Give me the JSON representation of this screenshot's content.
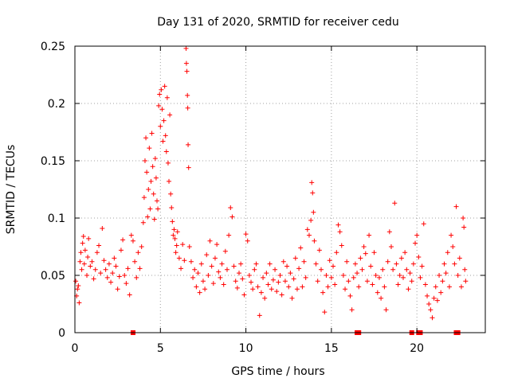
{
  "chart_data": {
    "type": "scatter",
    "title": "Day 131 of 2020, SRMTID for receiver cedu",
    "xlabel": "GPS time / hours",
    "ylabel": "SRMTID / TECUs",
    "xlim": [
      0,
      24
    ],
    "ylim": [
      0,
      0.25
    ],
    "x_ticks": [
      0,
      5,
      10,
      15,
      20
    ],
    "x_tick_labels": [
      "0",
      "5",
      "10",
      "15",
      "20"
    ],
    "y_ticks": [
      0,
      0.05,
      0.1,
      0.15,
      0.2,
      0.25
    ],
    "y_tick_labels": [
      "0",
      "0.05",
      "0.1",
      "0.15",
      "0.2",
      "0.25"
    ],
    "grid": true,
    "marker": "plus",
    "color": "#ff0000",
    "zero_markers": {
      "marker": "square",
      "x": [
        3.4,
        16.5,
        16.6,
        19.7,
        20.1,
        20.2,
        22.3,
        22.4
      ]
    },
    "series": [
      {
        "name": "SRMTID",
        "points": [
          [
            0.05,
            0.045
          ],
          [
            0.1,
            0.032
          ],
          [
            0.15,
            0.038
          ],
          [
            0.2,
            0.041
          ],
          [
            0.25,
            0.026
          ],
          [
            0.3,
            0.062
          ],
          [
            0.35,
            0.07
          ],
          [
            0.4,
            0.055
          ],
          [
            0.45,
            0.078
          ],
          [
            0.5,
            0.084
          ],
          [
            0.55,
            0.06
          ],
          [
            0.6,
            0.072
          ],
          [
            0.7,
            0.05
          ],
          [
            0.75,
            0.066
          ],
          [
            0.8,
            0.082
          ],
          [
            0.9,
            0.058
          ],
          [
            1.0,
            0.062
          ],
          [
            1.1,
            0.047
          ],
          [
            1.2,
            0.055
          ],
          [
            1.3,
            0.07
          ],
          [
            1.4,
            0.076
          ],
          [
            1.5,
            0.052
          ],
          [
            1.6,
            0.091
          ],
          [
            1.7,
            0.063
          ],
          [
            1.8,
            0.055
          ],
          [
            1.9,
            0.048
          ],
          [
            2.0,
            0.06
          ],
          [
            2.1,
            0.044
          ],
          [
            2.2,
            0.052
          ],
          [
            2.3,
            0.065
          ],
          [
            2.4,
            0.058
          ],
          [
            2.5,
            0.038
          ],
          [
            2.6,
            0.049
          ],
          [
            2.7,
            0.072
          ],
          [
            2.8,
            0.081
          ],
          [
            2.9,
            0.05
          ],
          [
            3.0,
            0.043
          ],
          [
            3.1,
            0.056
          ],
          [
            3.2,
            0.033
          ],
          [
            3.3,
            0.085
          ],
          [
            3.4,
            0.08
          ],
          [
            3.5,
            0.062
          ],
          [
            3.6,
            0.048
          ],
          [
            3.7,
            0.07
          ],
          [
            3.8,
            0.056
          ],
          [
            3.9,
            0.075
          ],
          [
            4.0,
            0.096
          ],
          [
            4.05,
            0.118
          ],
          [
            4.1,
            0.15
          ],
          [
            4.15,
            0.17
          ],
          [
            4.2,
            0.14
          ],
          [
            4.25,
            0.101
          ],
          [
            4.3,
            0.125
          ],
          [
            4.35,
            0.161
          ],
          [
            4.4,
            0.108
          ],
          [
            4.45,
            0.132
          ],
          [
            4.5,
            0.174
          ],
          [
            4.55,
            0.145
          ],
          [
            4.6,
            0.121
          ],
          [
            4.65,
            0.099
          ],
          [
            4.7,
            0.152
          ],
          [
            4.75,
            0.135
          ],
          [
            4.8,
            0.115
          ],
          [
            4.85,
            0.108
          ],
          [
            4.9,
            0.198
          ],
          [
            4.95,
            0.208
          ],
          [
            5.0,
            0.18
          ],
          [
            5.05,
            0.212
          ],
          [
            5.1,
            0.195
          ],
          [
            5.15,
            0.167
          ],
          [
            5.2,
            0.185
          ],
          [
            5.25,
            0.215
          ],
          [
            5.3,
            0.172
          ],
          [
            5.35,
            0.158
          ],
          [
            5.4,
            0.205
          ],
          [
            5.45,
            0.148
          ],
          [
            5.5,
            0.132
          ],
          [
            5.55,
            0.19
          ],
          [
            5.6,
            0.121
          ],
          [
            5.65,
            0.109
          ],
          [
            5.7,
            0.097
          ],
          [
            5.75,
            0.085
          ],
          [
            5.8,
            0.09
          ],
          [
            5.85,
            0.082
          ],
          [
            5.9,
            0.07
          ],
          [
            5.95,
            0.076
          ],
          [
            6.0,
            0.088
          ],
          [
            6.1,
            0.065
          ],
          [
            6.2,
            0.056
          ],
          [
            6.3,
            0.077
          ],
          [
            6.4,
            0.063
          ],
          [
            6.5,
            0.248
          ],
          [
            6.52,
            0.235
          ],
          [
            6.55,
            0.228
          ],
          [
            6.58,
            0.207
          ],
          [
            6.6,
            0.196
          ],
          [
            6.62,
            0.164
          ],
          [
            6.65,
            0.144
          ],
          [
            6.7,
            0.075
          ],
          [
            6.8,
            0.062
          ],
          [
            6.9,
            0.048
          ],
          [
            7.0,
            0.055
          ],
          [
            7.1,
            0.04
          ],
          [
            7.2,
            0.052
          ],
          [
            7.3,
            0.035
          ],
          [
            7.4,
            0.06
          ],
          [
            7.5,
            0.045
          ],
          [
            7.6,
            0.038
          ],
          [
            7.7,
            0.068
          ],
          [
            7.8,
            0.05
          ],
          [
            7.9,
            0.08
          ],
          [
            8.0,
            0.058
          ],
          [
            8.1,
            0.043
          ],
          [
            8.2,
            0.065
          ],
          [
            8.3,
            0.077
          ],
          [
            8.4,
            0.053
          ],
          [
            8.5,
            0.048
          ],
          [
            8.6,
            0.06
          ],
          [
            8.7,
            0.042
          ],
          [
            8.8,
            0.071
          ],
          [
            8.9,
            0.055
          ],
          [
            9.0,
            0.085
          ],
          [
            9.1,
            0.109
          ],
          [
            9.2,
            0.101
          ],
          [
            9.3,
            0.058
          ],
          [
            9.4,
            0.045
          ],
          [
            9.5,
            0.039
          ],
          [
            9.6,
            0.052
          ],
          [
            9.7,
            0.06
          ],
          [
            9.8,
            0.047
          ],
          [
            9.9,
            0.033
          ],
          [
            10.0,
            0.086
          ],
          [
            10.1,
            0.08
          ],
          [
            10.2,
            0.05
          ],
          [
            10.3,
            0.044
          ],
          [
            10.4,
            0.038
          ],
          [
            10.5,
            0.055
          ],
          [
            10.6,
            0.06
          ],
          [
            10.7,
            0.04
          ],
          [
            10.8,
            0.015
          ],
          [
            10.9,
            0.035
          ],
          [
            11.0,
            0.048
          ],
          [
            11.1,
            0.03
          ],
          [
            11.2,
            0.052
          ],
          [
            11.3,
            0.042
          ],
          [
            11.4,
            0.06
          ],
          [
            11.5,
            0.038
          ],
          [
            11.6,
            0.046
          ],
          [
            11.7,
            0.055
          ],
          [
            11.8,
            0.036
          ],
          [
            11.9,
            0.044
          ],
          [
            12.0,
            0.05
          ],
          [
            12.1,
            0.033
          ],
          [
            12.2,
            0.062
          ],
          [
            12.3,
            0.045
          ],
          [
            12.4,
            0.058
          ],
          [
            12.5,
            0.04
          ],
          [
            12.6,
            0.052
          ],
          [
            12.7,
            0.03
          ],
          [
            12.8,
            0.047
          ],
          [
            12.9,
            0.065
          ],
          [
            13.0,
            0.038
          ],
          [
            13.1,
            0.056
          ],
          [
            13.2,
            0.074
          ],
          [
            13.3,
            0.04
          ],
          [
            13.4,
            0.062
          ],
          [
            13.5,
            0.048
          ],
          [
            13.6,
            0.09
          ],
          [
            13.7,
            0.085
          ],
          [
            13.8,
            0.098
          ],
          [
            13.85,
            0.131
          ],
          [
            13.9,
            0.122
          ],
          [
            13.95,
            0.105
          ],
          [
            14.0,
            0.08
          ],
          [
            14.1,
            0.06
          ],
          [
            14.2,
            0.045
          ],
          [
            14.3,
            0.072
          ],
          [
            14.4,
            0.055
          ],
          [
            14.5,
            0.035
          ],
          [
            14.6,
            0.018
          ],
          [
            14.7,
            0.05
          ],
          [
            14.8,
            0.04
          ],
          [
            14.9,
            0.063
          ],
          [
            15.0,
            0.048
          ],
          [
            15.1,
            0.058
          ],
          [
            15.2,
            0.042
          ],
          [
            15.3,
            0.07
          ],
          [
            15.4,
            0.094
          ],
          [
            15.5,
            0.088
          ],
          [
            15.6,
            0.076
          ],
          [
            15.7,
            0.05
          ],
          [
            15.8,
            0.038
          ],
          [
            15.9,
            0.062
          ],
          [
            16.0,
            0.045
          ],
          [
            16.1,
            0.032
          ],
          [
            16.2,
            0.02
          ],
          [
            16.3,
            0.048
          ],
          [
            16.4,
            0.06
          ],
          [
            16.5,
            0.052
          ],
          [
            16.6,
            0.04
          ],
          [
            16.7,
            0.065
          ],
          [
            16.8,
            0.055
          ],
          [
            16.9,
            0.075
          ],
          [
            17.0,
            0.069
          ],
          [
            17.1,
            0.045
          ],
          [
            17.2,
            0.085
          ],
          [
            17.3,
            0.058
          ],
          [
            17.4,
            0.042
          ],
          [
            17.5,
            0.07
          ],
          [
            17.6,
            0.05
          ],
          [
            17.7,
            0.035
          ],
          [
            17.8,
            0.048
          ],
          [
            17.9,
            0.03
          ],
          [
            18.0,
            0.055
          ],
          [
            18.1,
            0.04
          ],
          [
            18.2,
            0.02
          ],
          [
            18.3,
            0.062
          ],
          [
            18.4,
            0.088
          ],
          [
            18.5,
            0.075
          ],
          [
            18.6,
            0.055
          ],
          [
            18.7,
            0.113
          ],
          [
            18.8,
            0.06
          ],
          [
            18.9,
            0.042
          ],
          [
            19.0,
            0.05
          ],
          [
            19.1,
            0.065
          ],
          [
            19.2,
            0.048
          ],
          [
            19.3,
            0.07
          ],
          [
            19.4,
            0.055
          ],
          [
            19.5,
            0.038
          ],
          [
            19.6,
            0.052
          ],
          [
            19.7,
            0.045
          ],
          [
            19.8,
            0.06
          ],
          [
            19.9,
            0.078
          ],
          [
            20.0,
            0.085
          ],
          [
            20.1,
            0.066
          ],
          [
            20.2,
            0.048
          ],
          [
            20.3,
            0.058
          ],
          [
            20.4,
            0.095
          ],
          [
            20.5,
            0.042
          ],
          [
            20.6,
            0.032
          ],
          [
            20.7,
            0.025
          ],
          [
            20.8,
            0.02
          ],
          [
            20.9,
            0.013
          ],
          [
            21.0,
            0.03
          ],
          [
            21.1,
            0.04
          ],
          [
            21.2,
            0.028
          ],
          [
            21.3,
            0.05
          ],
          [
            21.4,
            0.035
          ],
          [
            21.5,
            0.045
          ],
          [
            21.6,
            0.06
          ],
          [
            21.7,
            0.052
          ],
          [
            21.8,
            0.07
          ],
          [
            21.9,
            0.04
          ],
          [
            22.0,
            0.085
          ],
          [
            22.1,
            0.075
          ],
          [
            22.2,
            0.06
          ],
          [
            22.3,
            0.11
          ],
          [
            22.4,
            0.05
          ],
          [
            22.5,
            0.065
          ],
          [
            22.6,
            0.04
          ],
          [
            22.7,
            0.1
          ],
          [
            22.75,
            0.092
          ],
          [
            22.8,
            0.055
          ],
          [
            22.85,
            0.045
          ]
        ]
      }
    ]
  }
}
